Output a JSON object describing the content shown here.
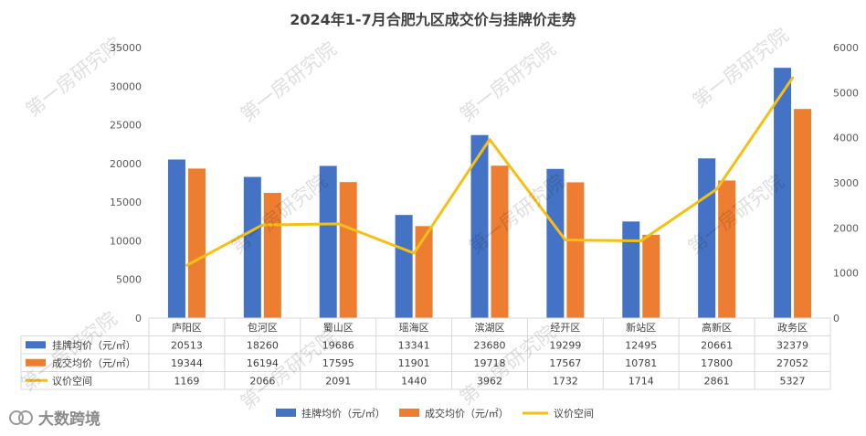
{
  "chart_data": {
    "type": "bar",
    "title": "2024年1-7月合肥九区成交价与挂牌价走势",
    "categories": [
      "庐阳区",
      "包河区",
      "蜀山区",
      "瑶海区",
      "滨湖区",
      "经开区",
      "新站区",
      "高新区",
      "政务区"
    ],
    "series": [
      {
        "name": "挂牌均价（元/㎡）",
        "type": "bar",
        "axis": "left",
        "color": "#4472C4",
        "values": [
          20513,
          18260,
          19686,
          13341,
          23680,
          19299,
          12495,
          20661,
          32379
        ]
      },
      {
        "name": "成交均价（元/㎡）",
        "type": "bar",
        "axis": "left",
        "color": "#ED7D31",
        "values": [
          19344,
          16194,
          17595,
          11901,
          19718,
          17567,
          10781,
          17800,
          27052
        ]
      },
      {
        "name": "议价空间",
        "type": "line",
        "axis": "right",
        "color": "#F5C016",
        "values": [
          1169,
          2066,
          2091,
          1440,
          3962,
          1732,
          1714,
          2861,
          5327
        ]
      }
    ],
    "y_left": {
      "min": 0,
      "max": 35000,
      "ticks": [
        0,
        5000,
        10000,
        15000,
        20000,
        25000,
        30000,
        35000
      ]
    },
    "y_right": {
      "min": 0,
      "max": 6000,
      "ticks": [
        0,
        1000,
        2000,
        3000,
        4000,
        5000,
        6000
      ]
    },
    "grid": false,
    "legend": "bottom",
    "data_table": true
  },
  "watermarks": [
    "第一房研究院",
    "第一房研究院",
    "第一房研究院",
    "第一房研究院",
    "第一房研究院",
    "第一房研究院",
    "第一房研究院",
    "第一房研究院",
    "第一房研究院",
    "第一房研究院"
  ],
  "logo": {
    "text": "大数跨境"
  }
}
